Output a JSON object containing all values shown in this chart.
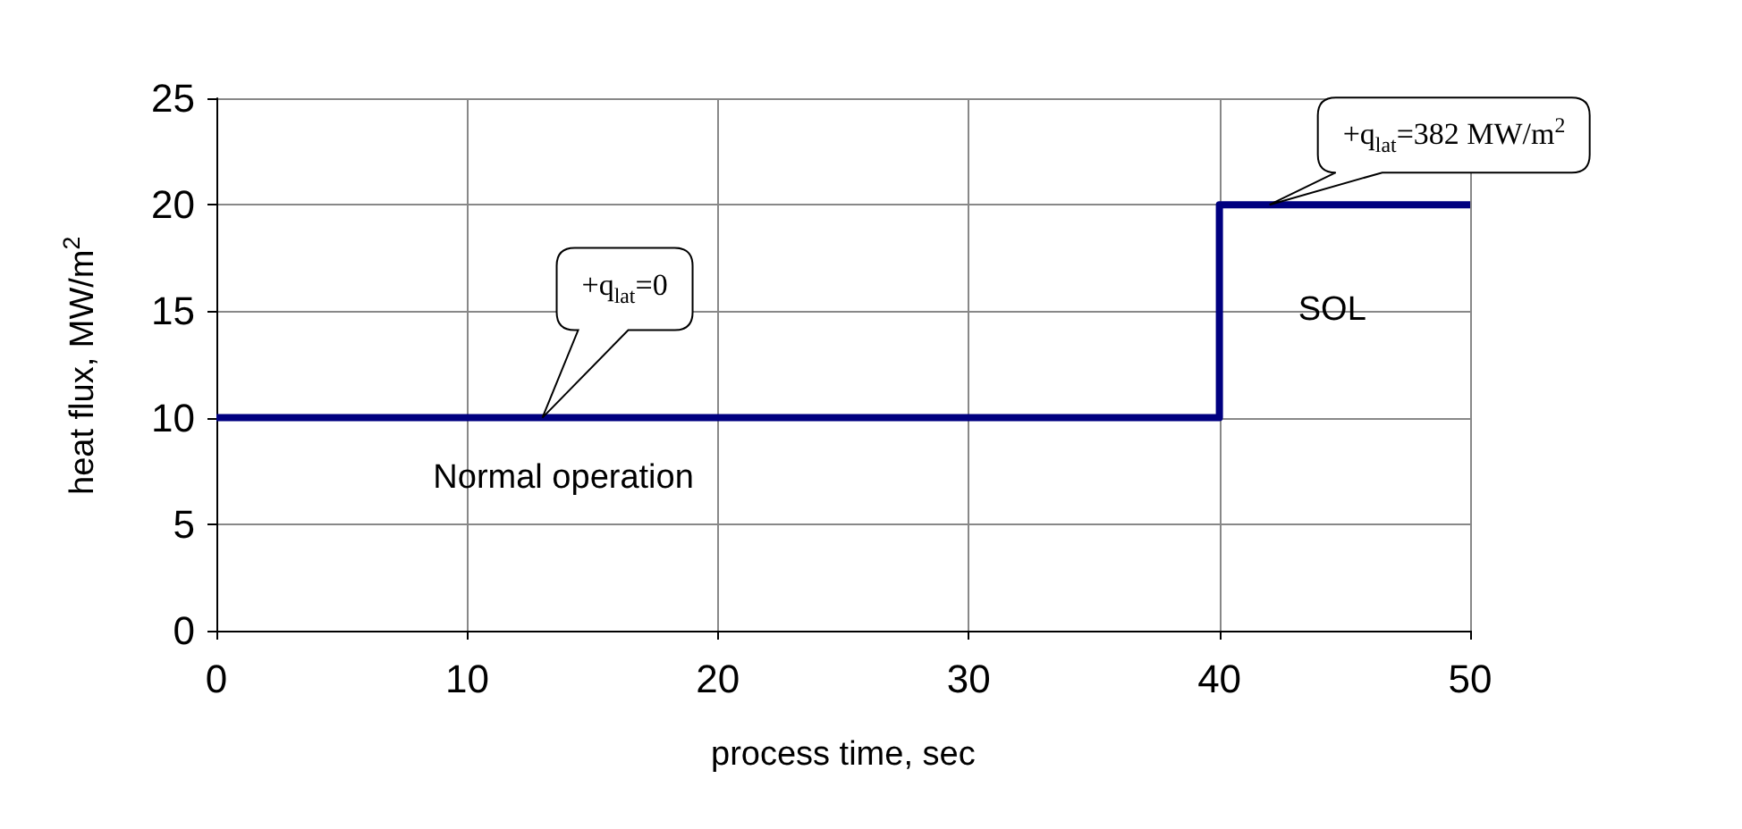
{
  "chart_data": {
    "type": "step",
    "xlabel": "process time, sec",
    "ylabel": "heat flux, MW/m$^{2}$",
    "x": [
      0,
      40,
      50
    ],
    "series": [
      {
        "color": "#000080",
        "values": [
          10,
          20,
          20
        ]
      }
    ],
    "xlim": [
      0,
      50
    ],
    "xticks": [
      0,
      10,
      20,
      30,
      40,
      50
    ],
    "ylim": [
      0,
      25
    ],
    "yticks": [
      0,
      5,
      10,
      15,
      20,
      25
    ],
    "grid": true,
    "marker": "none",
    "line_style": "solid",
    "annotations": [
      "+q$_{lat}$=0",
      "+q$_{lat}$=382 MW/m$^{2}$",
      "Normal operation",
      "SOL"
    ]
  }
}
